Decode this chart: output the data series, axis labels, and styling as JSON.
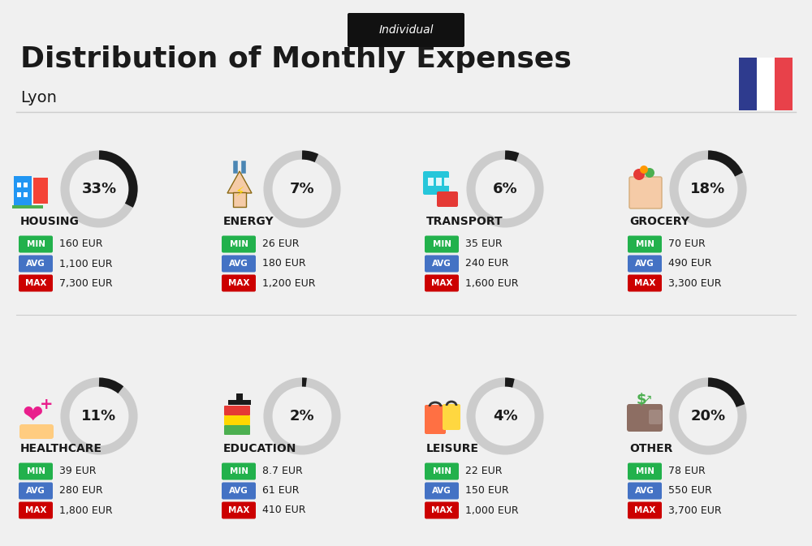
{
  "title": "Distribution of Monthly Expenses",
  "subtitle": "Lyon",
  "tag": "Individual",
  "bg_color": "#f0f0f0",
  "flag_blue": "#2e3b8e",
  "flag_red": "#e8414a",
  "categories": [
    {
      "name": "HOUSING",
      "pct": 33,
      "min": "160 EUR",
      "avg": "1,100 EUR",
      "max": "7,300 EUR",
      "icon": "housing",
      "row": 0,
      "col": 0
    },
    {
      "name": "ENERGY",
      "pct": 7,
      "min": "26 EUR",
      "avg": "180 EUR",
      "max": "1,200 EUR",
      "icon": "energy",
      "row": 0,
      "col": 1
    },
    {
      "name": "TRANSPORT",
      "pct": 6,
      "min": "35 EUR",
      "avg": "240 EUR",
      "max": "1,600 EUR",
      "icon": "transport",
      "row": 0,
      "col": 2
    },
    {
      "name": "GROCERY",
      "pct": 18,
      "min": "70 EUR",
      "avg": "490 EUR",
      "max": "3,300 EUR",
      "icon": "grocery",
      "row": 0,
      "col": 3
    },
    {
      "name": "HEALTHCARE",
      "pct": 11,
      "min": "39 EUR",
      "avg": "280 EUR",
      "max": "1,800 EUR",
      "icon": "healthcare",
      "row": 1,
      "col": 0
    },
    {
      "name": "EDUCATION",
      "pct": 2,
      "min": "8.7 EUR",
      "avg": "61 EUR",
      "max": "410 EUR",
      "icon": "education",
      "row": 1,
      "col": 1
    },
    {
      "name": "LEISURE",
      "pct": 4,
      "min": "22 EUR",
      "avg": "150 EUR",
      "max": "1,000 EUR",
      "icon": "leisure",
      "row": 1,
      "col": 2
    },
    {
      "name": "OTHER",
      "pct": 20,
      "min": "78 EUR",
      "avg": "550 EUR",
      "max": "3,700 EUR",
      "icon": "other",
      "row": 1,
      "col": 3
    }
  ],
  "min_color": "#22b14c",
  "avg_color": "#4472c4",
  "max_color": "#cc0000",
  "label_color": "#ffffff",
  "text_color": "#1a1a1a",
  "donut_dark": "#1a1a1a",
  "donut_light": "#cccccc"
}
